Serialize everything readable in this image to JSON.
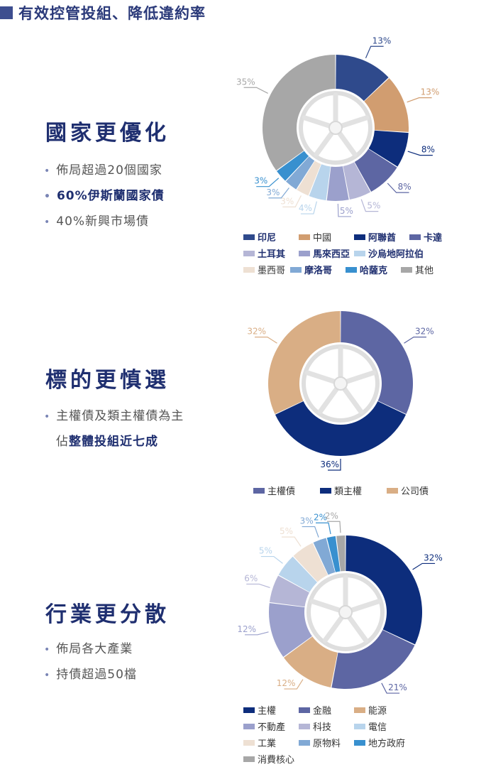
{
  "header": {
    "title": "有效控管投組、降低違約率"
  },
  "sections": [
    {
      "title": "國家更優化",
      "bullets": [
        {
          "text": "佈局超過20個國家",
          "bold": false
        },
        {
          "text": "60%伊斯蘭國家債",
          "bold": true
        },
        {
          "text": "40%新興市場債",
          "bold": false
        }
      ]
    },
    {
      "title": "標的更慎選",
      "bullets": [
        {
          "text_plain": "主權債及類主權債為主",
          "text_line2_plain": "佔",
          "text_line2_bold": "整體投組近七成"
        }
      ]
    },
    {
      "title": "行業更分散",
      "bullets": [
        {
          "text": "佈局各大產業",
          "bold": false
        },
        {
          "text": "持債超過50檔",
          "bold": false
        }
      ]
    }
  ],
  "chart_data": [
    {
      "type": "pie",
      "title": "",
      "categories": [
        "印尼",
        "中國",
        "阿聯酋",
        "卡達",
        "土耳其",
        "馬來西亞",
        "沙烏地阿拉伯",
        "墨西哥",
        "摩洛哥",
        "哈薩克",
        "其他"
      ],
      "values": [
        13,
        13,
        8,
        8,
        5,
        5,
        4,
        3,
        3,
        3,
        35
      ],
      "labels": [
        "13%",
        "13%",
        "8%",
        "8%",
        "5%",
        "5%",
        "4%",
        "3%",
        "3%",
        "3%",
        "35%"
      ],
      "colors": [
        "#2f4a8c",
        "#d19d70",
        "#0d2d7c",
        "#5d66a3",
        "#b5b6d6",
        "#9ba0cc",
        "#b8d4ec",
        "#eee0d3",
        "#81a9d5",
        "#3890cf",
        "#a7a7a7"
      ],
      "legend_bold": [
        true,
        false,
        true,
        true,
        true,
        true,
        true,
        false,
        true,
        true,
        false
      ]
    },
    {
      "type": "pie",
      "title": "",
      "categories": [
        "主權債",
        "類主權",
        "公司債"
      ],
      "values": [
        32,
        36,
        32
      ],
      "labels": [
        "32%",
        "36%",
        "32%"
      ],
      "colors": [
        "#5d66a3",
        "#0d2d7c",
        "#d9ae85"
      ],
      "legend_bold": [
        false,
        false,
        false
      ]
    },
    {
      "type": "pie",
      "title": "",
      "categories": [
        "主權",
        "金融",
        "能源",
        "不動產",
        "科技",
        "電信",
        "工業",
        "原物料",
        "地方政府",
        "消費核心"
      ],
      "values": [
        32,
        21,
        12,
        12,
        6,
        5,
        5,
        3,
        2,
        2
      ],
      "labels": [
        "32%",
        "21%",
        "12%",
        "12%",
        "6%",
        "5%",
        "5%",
        "3%",
        "2%",
        "2%"
      ],
      "colors": [
        "#0d2d7c",
        "#5d66a3",
        "#d9ae85",
        "#9ba0cc",
        "#b5b6d6",
        "#b8d4ec",
        "#eee0d3",
        "#81a9d5",
        "#3890cf",
        "#a7a7a7"
      ],
      "legend_bold": [
        false,
        false,
        false,
        false,
        false,
        false,
        false,
        false,
        false,
        false
      ]
    }
  ]
}
